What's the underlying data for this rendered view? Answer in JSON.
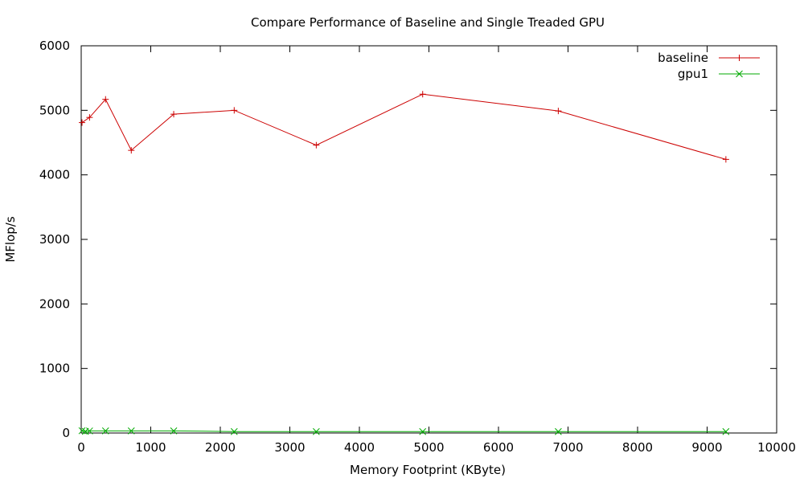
{
  "chart_data": {
    "type": "line",
    "title": "Compare Performance of Baseline and Single Treaded GPU",
    "xlabel": "Memory Footprint (KByte)",
    "ylabel": "MFlop/s",
    "xlim": [
      0,
      10000
    ],
    "ylim": [
      0,
      6000
    ],
    "xticks": [
      0,
      1000,
      2000,
      3000,
      4000,
      5000,
      6000,
      7000,
      8000,
      9000,
      10000
    ],
    "yticks": [
      0,
      1000,
      2000,
      3000,
      4000,
      5000,
      6000
    ],
    "grid": false,
    "legend_position": "top-right",
    "series": [
      {
        "name": "baseline",
        "color": "#cc0000",
        "marker": "plus",
        "x": [
          12,
          120,
          350,
          720,
          1330,
          2200,
          3380,
          4910,
          6860,
          9270
        ],
        "y": [
          4810,
          4890,
          5170,
          4380,
          4940,
          5000,
          4460,
          5250,
          4990,
          4240
        ]
      },
      {
        "name": "gpu1",
        "color": "#00aa00",
        "marker": "x",
        "x": [
          12,
          60,
          120,
          350,
          720,
          1330,
          2200,
          3380,
          4910,
          6860,
          9270
        ],
        "y": [
          35,
          25,
          32,
          33,
          33,
          33,
          22,
          22,
          22,
          22,
          22
        ]
      }
    ]
  }
}
